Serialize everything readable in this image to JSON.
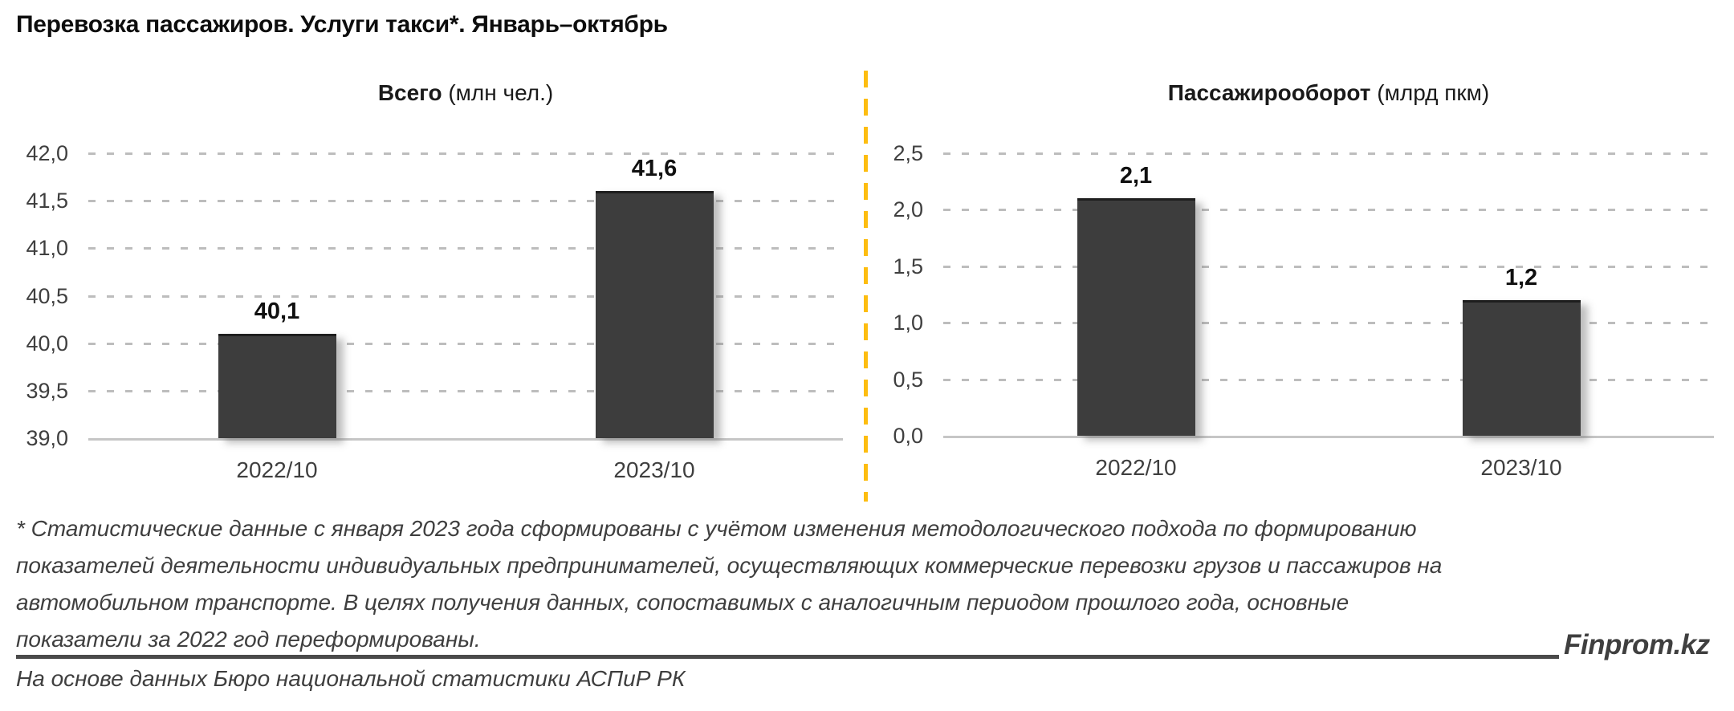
{
  "page": {
    "title": "Перевозка пассажиров. Услуги такси*. Январь–октябрь",
    "footnote_lines": [
      "* Статистические данные с января 2023 года сформированы с учётом изменения методологического подхода по формированию",
      "показателей деятельности индивидуальных предпринимателей, осуществляющих коммерческие перевозки грузов и пассажиров на",
      "автомобильном транспорте. В целях получения данных, сопоставимых с аналогичным периодом прошлого года, основные",
      "показатели за 2022 год переформированы."
    ],
    "source": "На основе данных Бюро национальной статистики АСПиР РК",
    "brand": "Finprom.kz"
  },
  "colors": {
    "bar": "#3d3d3d",
    "gridline": "#bdbdbd",
    "axis_line": "#c6c6c6",
    "divider": "#fdbd10",
    "text": "#0d0d0d",
    "secondary_text": "#3f3f3f"
  },
  "chart_data": [
    {
      "type": "bar",
      "title": "Всего",
      "unit_label": " (млн чел.)",
      "categories": [
        "2022/10",
        "2023/10"
      ],
      "values": [
        40.1,
        41.6
      ],
      "value_labels": [
        "40,1",
        "41,6"
      ],
      "ylim": [
        39.0,
        42.0
      ],
      "ytick_step": 0.5,
      "yticks": [
        "42,0",
        "41,5",
        "41,0",
        "40,5",
        "40,0",
        "39,5",
        "39,0"
      ],
      "grid": true,
      "legend": "none"
    },
    {
      "type": "bar",
      "title": "Пассажирооборот",
      "unit_label": " (млрд пкм)",
      "categories": [
        "2022/10",
        "2023/10"
      ],
      "values": [
        2.1,
        1.2
      ],
      "value_labels": [
        "2,1",
        "1,2"
      ],
      "ylim": [
        0.0,
        2.5
      ],
      "ytick_step": 0.5,
      "yticks": [
        "2,5",
        "2,0",
        "1,5",
        "1,0",
        "0,5",
        "0,0"
      ],
      "grid": true,
      "legend": "none"
    }
  ]
}
